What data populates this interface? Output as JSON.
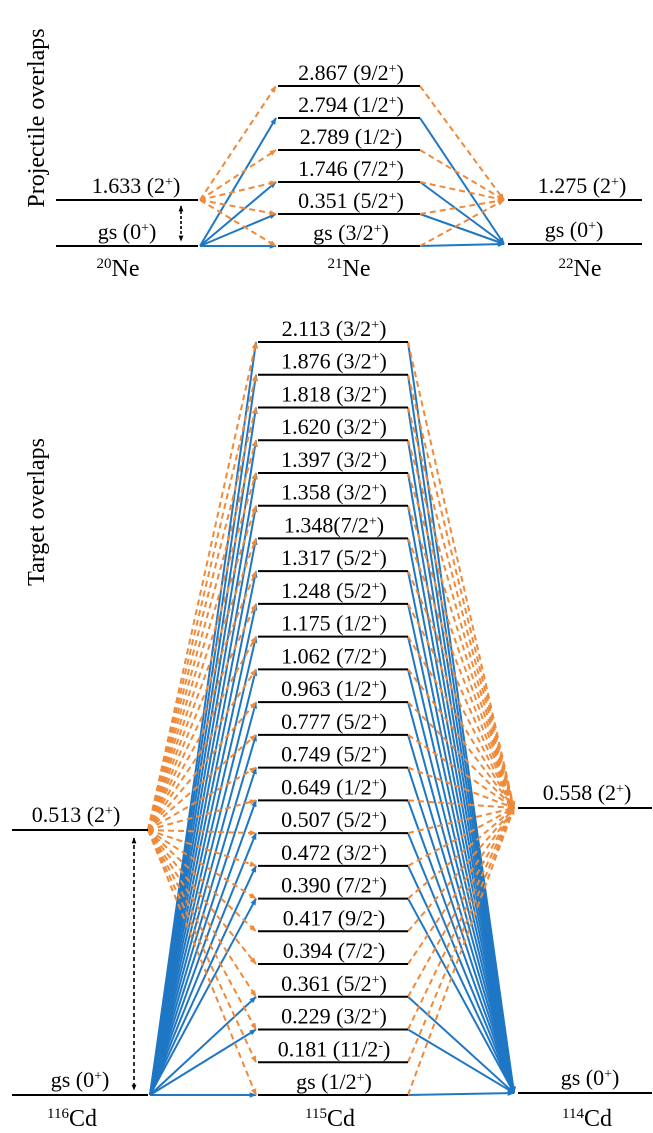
{
  "colors": {
    "blue": "#1f77c4",
    "orange": "#ee8a3a",
    "black": "#000000",
    "background": "#ffffff"
  },
  "projectile": {
    "section_label": "Projectile overlaps",
    "left_nucleus": {
      "mass": "20",
      "symbol": "Ne",
      "levels": [
        {
          "energy": "gs",
          "jp": "(0",
          "par": "+",
          "close": ")"
        },
        {
          "energy": "1.633",
          "jp": "(2",
          "par": "+",
          "close": ")"
        }
      ]
    },
    "middle_nucleus": {
      "mass": "21",
      "symbol": "Ne",
      "levels": [
        {
          "energy": "gs",
          "jp": "(3/2",
          "par": "+",
          "close": ")"
        },
        {
          "energy": "0.351",
          "jp": "(5/2",
          "par": "+",
          "close": ")"
        },
        {
          "energy": "1.746",
          "jp": "(7/2",
          "par": "+",
          "close": ")"
        },
        {
          "energy": "2.789",
          "jp": "(1/2",
          "par": "-",
          "close": ")"
        },
        {
          "energy": "2.794",
          "jp": "(1/2",
          "par": "+",
          "close": ")"
        },
        {
          "energy": "2.867",
          "jp": "(9/2",
          "par": "+",
          "close": ")"
        }
      ]
    },
    "right_nucleus": {
      "mass": "22",
      "symbol": "Ne",
      "levels": [
        {
          "energy": "gs",
          "jp": "(0",
          "par": "+",
          "close": ")"
        },
        {
          "energy": "1.275",
          "jp": "(2",
          "par": "+",
          "close": ")"
        }
      ]
    }
  },
  "target": {
    "section_label": "Target overlaps",
    "left_nucleus": {
      "mass": "116",
      "symbol": "Cd",
      "levels": [
        {
          "energy": "gs",
          "jp": "(0",
          "par": "+",
          "close": ")"
        },
        {
          "energy": "0.513",
          "jp": "(2",
          "par": "+",
          "close": ")"
        }
      ]
    },
    "middle_nucleus": {
      "mass": "115",
      "symbol": "Cd",
      "levels": [
        {
          "energy": "gs",
          "jp": "(1/2",
          "par": "+",
          "close": ")"
        },
        {
          "energy": "0.181",
          "jp": "(11/2",
          "par": "-",
          "close": ")"
        },
        {
          "energy": "0.229",
          "jp": "(3/2",
          "par": "+",
          "close": ")"
        },
        {
          "energy": "0.361",
          "jp": "(5/2",
          "par": "+",
          "close": ")"
        },
        {
          "energy": "0.394",
          "jp": "(7/2",
          "par": "-",
          "close": ")"
        },
        {
          "energy": "0.417",
          "jp": "(9/2",
          "par": "-",
          "close": ")"
        },
        {
          "energy": "0.390",
          "jp": "(7/2",
          "par": "+",
          "close": ")"
        },
        {
          "energy": "0.472",
          "jp": "(3/2",
          "par": "+",
          "close": ")"
        },
        {
          "energy": "0.507",
          "jp": "(5/2",
          "par": "+",
          "close": ")"
        },
        {
          "energy": "0.649",
          "jp": "(1/2",
          "par": "+",
          "close": ")"
        },
        {
          "energy": "0.749",
          "jp": "(5/2",
          "par": "+",
          "close": ")"
        },
        {
          "energy": "0.777",
          "jp": "(5/2",
          "par": "+",
          "close": ")"
        },
        {
          "energy": "0.963",
          "jp": "(1/2",
          "par": "+",
          "close": ")"
        },
        {
          "energy": "1.062",
          "jp": "(7/2",
          "par": "+",
          "close": ")"
        },
        {
          "energy": "1.175",
          "jp": "(1/2",
          "par": "+",
          "close": ")"
        },
        {
          "energy": "1.248",
          "jp": "(5/2",
          "par": "+",
          "close": ")"
        },
        {
          "energy": "1.317",
          "jp": "(5/2",
          "par": "+",
          "close": ")"
        },
        {
          "energy": "1.348",
          "jp": "(7/2",
          "par": "+",
          "close": ")",
          "tight": true
        },
        {
          "energy": "1.358",
          "jp": "(3/2",
          "par": "+",
          "close": ")"
        },
        {
          "energy": "1.397",
          "jp": "(3/2",
          "par": "+",
          "close": ")"
        },
        {
          "energy": "1.620",
          "jp": "(3/2",
          "par": "+",
          "close": ")"
        },
        {
          "energy": "1.818",
          "jp": "(3/2",
          "par": "+",
          "close": ")"
        },
        {
          "energy": "1.876",
          "jp": "(3/2",
          "par": "+",
          "close": ")"
        },
        {
          "energy": "2.113",
          "jp": "(3/2",
          "par": "+",
          "close": ")"
        }
      ]
    },
    "right_nucleus": {
      "mass": "114",
      "symbol": "Cd",
      "levels": [
        {
          "energy": "gs",
          "jp": "(0",
          "par": "+",
          "close": ")"
        },
        {
          "energy": "0.558",
          "jp": "(2",
          "par": "+",
          "close": ")"
        }
      ]
    }
  }
}
